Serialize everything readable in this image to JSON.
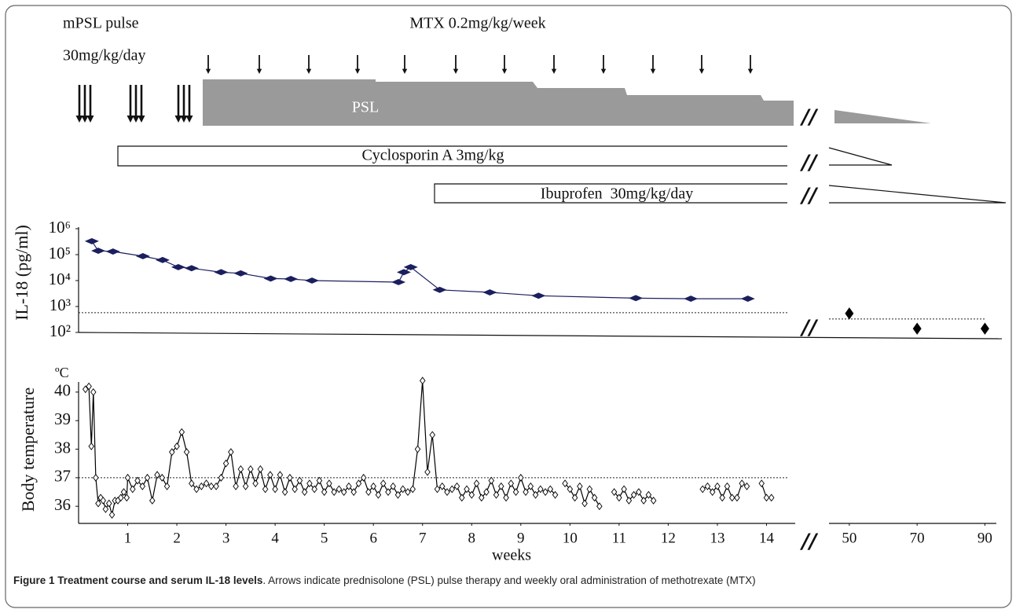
{
  "diagram": {
    "mpsl": {
      "label": "mPSL pulse",
      "dose": "30mg/kg/day"
    },
    "mtx": "MTX 0.2mg/kg/week",
    "psl": "PSL",
    "cyclosporin": "Cyclosporin A 3mg/kg",
    "ibuprofen": "Ibuprofen  30mg/kg/day",
    "break_mark": "//"
  },
  "chart_data": [
    {
      "type": "line",
      "ylabel": "IL-18 (pg/ml)",
      "log": true,
      "ylim": [
        100,
        1000000
      ],
      "yticks": [
        {
          "value": 100,
          "label": "10²"
        },
        {
          "value": 1000,
          "label": "10³"
        },
        {
          "value": 10000,
          "label": "10⁴"
        },
        {
          "value": 100000,
          "label": "10⁵"
        },
        {
          "value": 1000000,
          "label": "10⁶"
        }
      ],
      "xlim": [
        0,
        95
      ],
      "xbreak": [
        14.6,
        44
      ],
      "reference_line": 575,
      "series": [
        {
          "color": "#1b1f5e",
          "x": [
            0.27,
            0.4,
            0.7,
            1.31,
            1.71,
            2.03,
            2.3,
            2.9,
            3.3,
            3.91,
            4.32,
            4.75,
            6.51,
            6.62,
            6.76,
            7.35,
            8.37,
            9.36,
            11.34,
            12.46,
            13.62
          ],
          "values": [
            330000,
            141000,
            132000,
            87000,
            62000,
            33000,
            30000,
            21000,
            19000,
            12000,
            11500,
            10000,
            8700,
            21000,
            33000,
            4400,
            3500,
            2600,
            2100,
            2000,
            2000
          ]
        },
        {
          "color": "#000000",
          "line": false,
          "x": [
            50,
            70,
            90
          ],
          "values": [
            540,
            140,
            140
          ]
        }
      ]
    },
    {
      "type": "line",
      "ylabel": "Body temperature",
      "yunit": "ºC",
      "xlabel": "weeks",
      "ylim": [
        35.4,
        40.3
      ],
      "yticks": [
        36,
        37,
        38,
        39,
        40
      ],
      "xlim": [
        0,
        95
      ],
      "xbreak": [
        14.6,
        44
      ],
      "xticks": [
        1,
        2,
        3,
        4,
        5,
        6,
        7,
        8,
        9,
        10,
        11,
        12,
        13,
        14,
        50,
        70,
        90
      ],
      "reference_line": 37,
      "series": [
        {
          "color": "#000000",
          "marker_fill": "#ffffff",
          "x": [
            0.14,
            0.21,
            0.26,
            0.3,
            0.35,
            0.4,
            0.45,
            0.5,
            0.55,
            0.62,
            0.68,
            0.74,
            0.8,
            0.86,
            0.92,
            0.98,
            1.0,
            1.1,
            1.2,
            1.3,
            1.4,
            1.5,
            1.6,
            1.7,
            1.8,
            1.9,
            2.0,
            2.1,
            2.2,
            2.3,
            2.4,
            2.5,
            2.6,
            2.7,
            2.8,
            2.9,
            3.0,
            3.1,
            3.2,
            3.3,
            3.4,
            3.5,
            3.6,
            3.7,
            3.8,
            3.9,
            4.0,
            4.1,
            4.2,
            4.3,
            4.4,
            4.5,
            4.6,
            4.7,
            4.8,
            4.9,
            5.0,
            5.1,
            5.2,
            5.3,
            5.4,
            5.5,
            5.6,
            5.7,
            5.8,
            5.9,
            6.0,
            6.1,
            6.2,
            6.3,
            6.4,
            6.5,
            6.6,
            6.7,
            6.8,
            6.9,
            7.0,
            7.1,
            7.2,
            7.3,
            7.4,
            7.5,
            7.6,
            7.7,
            7.8,
            7.9,
            8.0,
            8.1,
            8.2,
            8.3,
            8.4,
            8.5,
            8.6,
            8.7,
            8.8,
            8.9,
            9.0,
            9.1,
            9.2,
            9.3,
            9.4,
            9.5,
            9.6,
            9.7,
            9.8,
            9.9,
            10.0,
            10.1,
            10.2,
            10.3,
            10.4,
            10.5,
            10.6,
            10.7,
            10.9,
            11.0,
            11.1,
            11.2,
            11.3,
            11.4,
            11.5,
            11.6,
            11.7,
            11.8,
            12.7,
            12.8,
            12.9,
            13.0,
            13.1,
            13.2,
            13.3,
            13.4,
            13.5,
            13.6,
            13.7,
            13.9,
            14.0,
            14.1
          ],
          "values": [
            40.1,
            40.2,
            38.1,
            40.0,
            37.0,
            36.1,
            36.3,
            36.2,
            35.9,
            36.1,
            35.7,
            36.2,
            36.2,
            36.3,
            36.5,
            36.3,
            37.0,
            36.6,
            36.9,
            36.7,
            37.0,
            36.2,
            37.1,
            37.0,
            36.7,
            37.9,
            38.1,
            38.6,
            37.9,
            36.8,
            36.6,
            36.7,
            36.8,
            36.7,
            36.7,
            37.0,
            37.5,
            37.9,
            36.7,
            37.3,
            36.7,
            37.3,
            36.8,
            37.3,
            36.6,
            37.1,
            36.6,
            37.1,
            36.5,
            37.0,
            36.6,
            36.9,
            36.5,
            36.8,
            36.6,
            36.9,
            36.5,
            36.8,
            36.5,
            36.6,
            36.5,
            36.7,
            36.5,
            36.8,
            37.0,
            36.5,
            36.7,
            36.4,
            36.8,
            36.5,
            36.7,
            36.4,
            36.6,
            36.5,
            36.6,
            38.0,
            40.4,
            37.2,
            38.5,
            36.6,
            36.7,
            36.5,
            36.6,
            36.7,
            36.3,
            36.6,
            36.4,
            36.8,
            36.3,
            36.5,
            36.9,
            36.4,
            36.7,
            36.3,
            36.8,
            36.5,
            37.0,
            36.5,
            36.7,
            36.4,
            36.6,
            36.5,
            36.6,
            36.4,
            null,
            36.8,
            36.6,
            36.3,
            36.7,
            36.1,
            36.6,
            36.3,
            36.0,
            null,
            36.5,
            36.3,
            36.6,
            36.2,
            36.4,
            36.5,
            36.2,
            36.4,
            36.2,
            null,
            36.6,
            36.7,
            36.5,
            36.7,
            36.3,
            36.7,
            36.3,
            36.3,
            36.8,
            36.7,
            null,
            36.8,
            36.3,
            36.3
          ]
        }
      ]
    }
  ],
  "caption": {
    "title": "Figure 1 Treatment course and serum IL-18 levels",
    "text": ". Arrows indicate prednisolone (PSL) pulse therapy and weekly oral administration of methotrexate (MTX)"
  }
}
